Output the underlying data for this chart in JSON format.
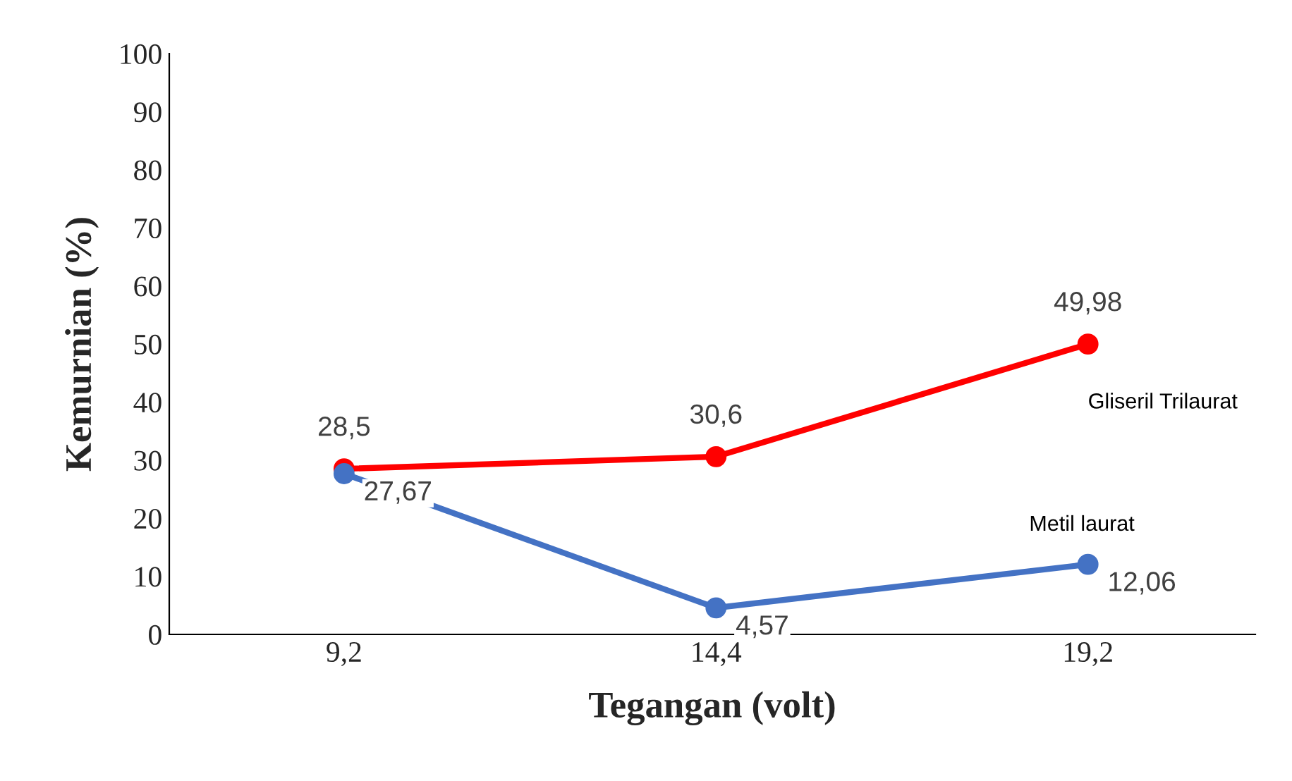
{
  "chart_data": {
    "type": "line",
    "xlabel": "Tegangan (volt)",
    "ylabel": "Kemurnian (%)",
    "categories": [
      "9,2",
      "14,4",
      "19,2"
    ],
    "series": [
      {
        "name": "Gliseril Trilaurat",
        "color": "#ff0000",
        "values": [
          28.5,
          30.6,
          49.98
        ],
        "value_labels": [
          "28,5",
          "30,6",
          "49,98"
        ]
      },
      {
        "name": "Metil laurat",
        "color": "#4472c4",
        "values": [
          27.67,
          4.57,
          12.06
        ],
        "value_labels": [
          "27,67",
          "4,57",
          "12,06"
        ]
      }
    ],
    "ylim": [
      0,
      100
    ],
    "yticks": [
      0,
      10,
      20,
      30,
      40,
      50,
      60,
      70,
      80,
      90,
      100
    ],
    "grid": false,
    "legend": false,
    "marker": "circle",
    "line_style": "solid"
  }
}
